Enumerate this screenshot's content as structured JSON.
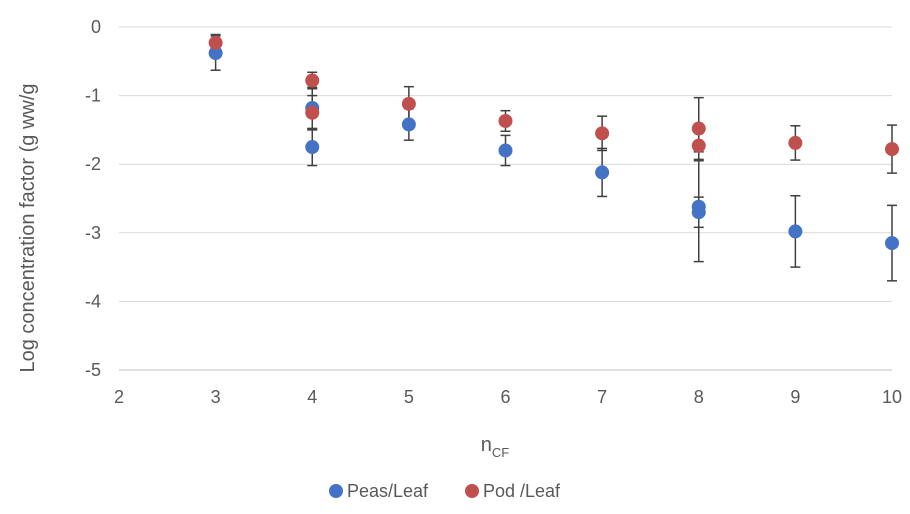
{
  "chart_data": {
    "type": "scatter",
    "xlabel_main": "n",
    "xlabel_sub": "CF",
    "ylabel": "Log concentration factor (g ww/g",
    "xlim": [
      2,
      10
    ],
    "ylim": [
      -5,
      0
    ],
    "x_ticks": [
      "2",
      "3",
      "4",
      "5",
      "6",
      "7",
      "8",
      "9",
      "10"
    ],
    "y_ticks": [
      "0",
      "-1",
      "-2",
      "-3",
      "-4",
      "-5"
    ],
    "grid": "horizontal",
    "legend_position": "bottom",
    "error_bars": true,
    "series": [
      {
        "name": "Peas/Leaf",
        "color": "#4472c4",
        "points": [
          {
            "x": 3,
            "y": -0.38,
            "err": 0.25
          },
          {
            "x": 4,
            "y": -1.18,
            "err": 0.3
          },
          {
            "x": 4,
            "y": -1.75,
            "err": 0.27
          },
          {
            "x": 5,
            "y": -1.42,
            "err": 0.23
          },
          {
            "x": 6,
            "y": -1.8,
            "err": 0.22
          },
          {
            "x": 7,
            "y": -2.12,
            "err": 0.35
          },
          {
            "x": 8,
            "y": -2.62,
            "err": 0.8
          },
          {
            "x": 8,
            "y": -2.7,
            "err": 0.22
          },
          {
            "x": 9,
            "y": -2.98,
            "err": 0.52
          },
          {
            "x": 10,
            "y": -3.15,
            "err": 0.55
          }
        ]
      },
      {
        "name": "Pod /Leaf",
        "color": "#c0504d",
        "points": [
          {
            "x": 3,
            "y": -0.23,
            "err": 0.12
          },
          {
            "x": 4,
            "y": -0.78,
            "err": 0.12
          },
          {
            "x": 4,
            "y": -1.25,
            "err": 0.25
          },
          {
            "x": 5,
            "y": -1.12,
            "err": 0.25
          },
          {
            "x": 6,
            "y": -1.37,
            "err": 0.15
          },
          {
            "x": 7,
            "y": -1.55,
            "err": 0.25
          },
          {
            "x": 8,
            "y": -1.48,
            "err": 0.45
          },
          {
            "x": 8,
            "y": -1.73,
            "err": 0.22
          },
          {
            "x": 9,
            "y": -1.69,
            "err": 0.25
          },
          {
            "x": 10,
            "y": -1.78,
            "err": 0.35
          }
        ]
      }
    ]
  }
}
